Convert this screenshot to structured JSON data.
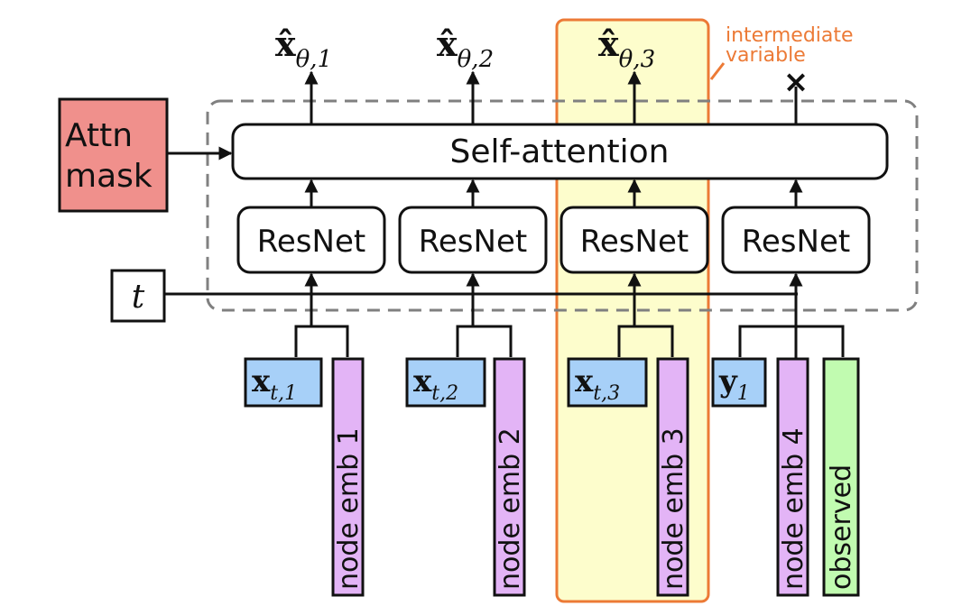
{
  "attn_mask_label": {
    "line1": "Attn",
    "line2": "mask"
  },
  "self_attention_label": "Self-attention",
  "resnet_labels": [
    "ResNet",
    "ResNet",
    "ResNet",
    "ResNet"
  ],
  "time_label": "t",
  "outputs": [
    {
      "base": "x̂",
      "sub": "θ,1"
    },
    {
      "base": "x̂",
      "sub": "θ,2"
    },
    {
      "base": "x̂",
      "sub": "θ,3"
    }
  ],
  "unused_output_mark": "×",
  "highlight_label": {
    "line1": "intermediate",
    "line2": "variable"
  },
  "inputs": [
    {
      "base": "x",
      "sub": "t,1"
    },
    {
      "base": "x",
      "sub": "t,2"
    },
    {
      "base": "x",
      "sub": "t,3"
    },
    {
      "base": "y",
      "sub": "1"
    }
  ],
  "node_embeddings": [
    "node emb 1",
    "node emb 2",
    "node emb 3",
    "node emb 4"
  ],
  "observed_label": "observed",
  "colors": {
    "attn_mask_fill": "#f0908c",
    "input_fill": "#a7d0f8",
    "node_emb_fill": "#e3b4f6",
    "observed_fill": "#c1fbb0",
    "highlight_fill": "#fdfdcc",
    "highlight_stroke": "#ec7a36",
    "dashed_stroke": "#808080"
  }
}
